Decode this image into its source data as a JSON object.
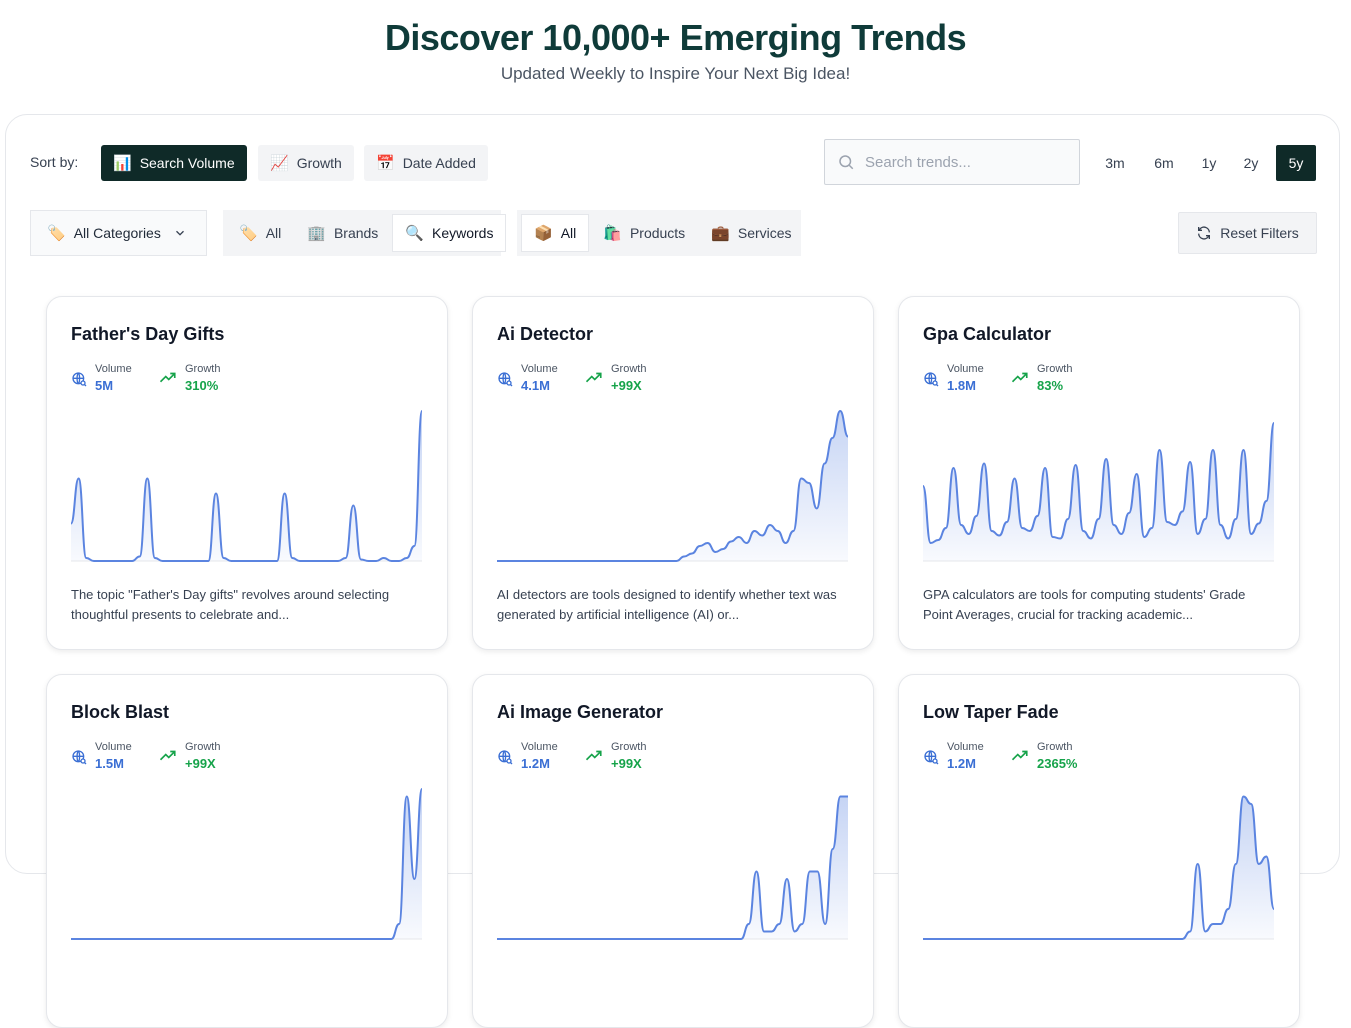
{
  "hero": {
    "title": "Discover 10,000+ Emerging Trends",
    "subtitle": "Updated Weekly to Inspire Your Next Big Idea!"
  },
  "sort": {
    "label": "Sort by:",
    "options": [
      {
        "label": "Search Volume",
        "icon": "📊",
        "active": true
      },
      {
        "label": "Growth",
        "icon": "📈",
        "active": false
      },
      {
        "label": "Date Added",
        "icon": "📅",
        "active": false
      }
    ]
  },
  "search": {
    "placeholder": "Search trends..."
  },
  "ranges": [
    {
      "label": "3m",
      "active": false
    },
    {
      "label": "6m",
      "active": false
    },
    {
      "label": "1y",
      "active": false
    },
    {
      "label": "2y",
      "active": false
    },
    {
      "label": "5y",
      "active": true
    }
  ],
  "filters": {
    "category_label": "All Categories",
    "category_icon": "🏷️",
    "type_group": [
      {
        "label": "All",
        "icon": "🏷️",
        "active": false
      },
      {
        "label": "Brands",
        "icon": "🏢",
        "active": false
      },
      {
        "label": "Keywords",
        "icon": "🔍",
        "active": true
      }
    ],
    "kind_group": [
      {
        "label": "All",
        "icon": "📦",
        "active": true
      },
      {
        "label": "Products",
        "icon": "🛍️",
        "active": false
      },
      {
        "label": "Services",
        "icon": "💼",
        "active": false
      }
    ],
    "reset_label": "Reset Filters"
  },
  "metric_labels": {
    "volume": "Volume",
    "growth": "Growth"
  },
  "colors": {
    "accent_dark": "#0f2a28",
    "volume": "#3b6fd4",
    "growth": "#16a34a",
    "line": "#5b84e0"
  },
  "cards": [
    {
      "title": "Father's Day Gifts",
      "volume": "5M",
      "growth": "310%",
      "description": "The topic \"Father's Day gifts\" revolves around selecting thoughtful presents to celebrate and...",
      "chart_values": [
        0.25,
        0.55,
        0.02,
        0,
        0,
        0,
        0,
        0,
        0,
        0.03,
        0.55,
        0.02,
        0,
        0,
        0,
        0,
        0,
        0,
        0,
        0.45,
        0.02,
        0,
        0,
        0,
        0,
        0,
        0,
        0,
        0.45,
        0.02,
        0,
        0,
        0,
        0,
        0,
        0,
        0.02,
        0.37,
        0.01,
        0,
        0,
        0.02,
        0,
        0,
        0.02,
        0.1,
        1.0
      ]
    },
    {
      "title": "Ai Detector",
      "volume": "4.1M",
      "growth": "+99X",
      "description": "AI detectors are tools designed to identify whether text was generated by artificial intelligence (AI) or...",
      "chart_values": [
        0,
        0,
        0,
        0,
        0,
        0,
        0,
        0,
        0,
        0,
        0,
        0,
        0,
        0,
        0,
        0,
        0,
        0,
        0,
        0,
        0,
        0,
        0,
        0,
        0.03,
        0.05,
        0.1,
        0.12,
        0.06,
        0.08,
        0.13,
        0.16,
        0.12,
        0.2,
        0.17,
        0.24,
        0.2,
        0.12,
        0.2,
        0.55,
        0.52,
        0.35,
        0.65,
        0.82,
        1.0,
        0.83
      ]
    },
    {
      "title": "Gpa Calculator",
      "volume": "1.8M",
      "growth": "83%",
      "description": "GPA calculators are tools for computing students' Grade Point Averages, crucial for tracking academic...",
      "chart_values": [
        0.5,
        0.12,
        0.14,
        0.22,
        0.62,
        0.24,
        0.18,
        0.3,
        0.65,
        0.2,
        0.17,
        0.26,
        0.55,
        0.22,
        0.2,
        0.3,
        0.62,
        0.16,
        0.15,
        0.28,
        0.64,
        0.2,
        0.15,
        0.28,
        0.68,
        0.24,
        0.18,
        0.32,
        0.58,
        0.16,
        0.22,
        0.74,
        0.26,
        0.24,
        0.33,
        0.66,
        0.18,
        0.28,
        0.74,
        0.24,
        0.15,
        0.28,
        0.74,
        0.18,
        0.25,
        0.4,
        0.92
      ]
    }
  ]
}
